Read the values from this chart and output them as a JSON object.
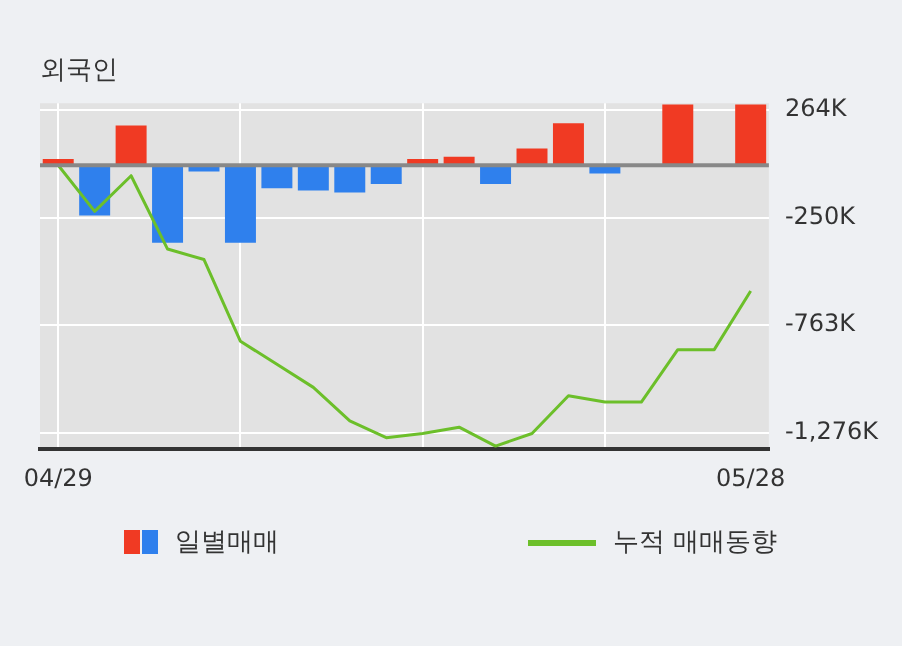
{
  "chart_data": {
    "type": "bar",
    "title": "외국인",
    "categories": [
      "04/29",
      null,
      null,
      null,
      null,
      null,
      null,
      null,
      null,
      null,
      null,
      null,
      null,
      null,
      null,
      null,
      null,
      null,
      null,
      "05/28"
    ],
    "series": [
      {
        "name": "일별매매",
        "colors": [
          "#f03a23",
          "#2f80ed",
          "#f03a23",
          "#2f80ed",
          "#2f80ed",
          "#2f80ed",
          "#2f80ed",
          "#2f80ed",
          "#2f80ed",
          "#2f80ed",
          "#f03a23",
          "#f03a23",
          "#2f80ed",
          "#f03a23",
          "#f03a23",
          "#2f80ed",
          "#f03a23",
          "#f03a23",
          "#f03a23",
          "#f03a23"
        ],
        "values": [
          30,
          -240,
          190,
          -370,
          -30,
          -370,
          -110,
          -120,
          -130,
          -90,
          30,
          40,
          -90,
          80,
          200,
          -40,
          0,
          290,
          0,
          290
        ]
      },
      {
        "name": "누적 매매동향",
        "type": "line",
        "color": "#6cbf2a",
        "values": [
          0,
          -220,
          -50,
          -400,
          -450,
          -840,
          -950,
          -1060,
          -1220,
          -1300,
          -1280,
          -1250,
          -1340,
          -1280,
          -1100,
          -1130,
          -1130,
          -880,
          -880,
          -600
        ]
      }
    ],
    "ylim": [
      -1355,
      296
    ],
    "yticks": [
      {
        "value": 264,
        "label": "264K"
      },
      {
        "value": -250,
        "label": "-250K"
      },
      {
        "value": -763,
        "label": "-763K"
      },
      {
        "value": -1276,
        "label": "-1,276K"
      }
    ],
    "grid": true,
    "legend": "bottom",
    "marker": "none"
  }
}
